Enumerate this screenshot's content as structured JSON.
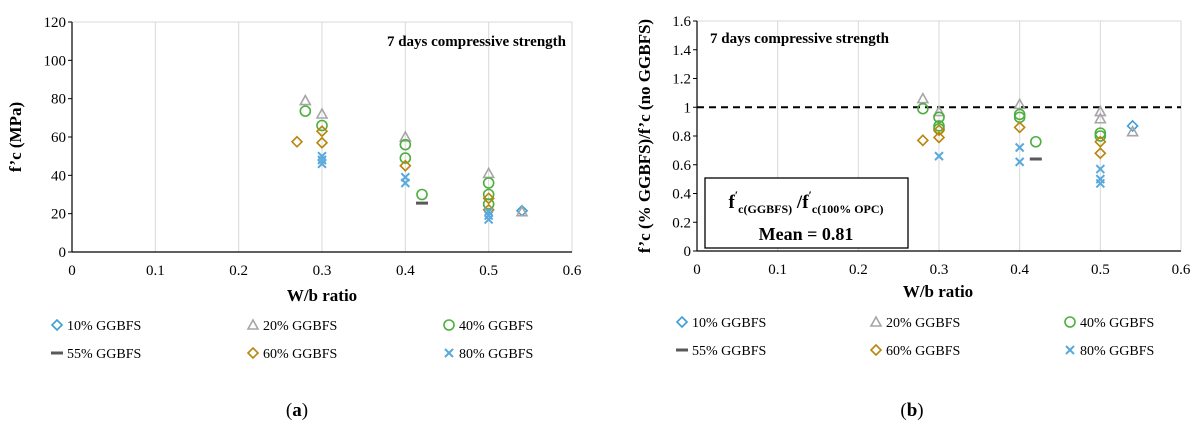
{
  "colors": {
    "10% GGBFS": "#3b9fd8",
    "20% GGBFS": "#a6a6a6",
    "40% GGBFS": "#4caf3d",
    "55% GGBFS": "#595959",
    "60% GGBFS": "#b8860b",
    "80% GGBFS": "#5aa9dc",
    "grid": "#d9d9d9",
    "mean_line": "#000000"
  },
  "markers": {
    "10% GGBFS": "diamond",
    "20% GGBFS": "triangle",
    "40% GGBFS": "circle",
    "55% GGBFS": "dash",
    "60% GGBFS": "diamond",
    "80% GGBFS": "cross"
  },
  "captions": {
    "a_prefix": "(",
    "a_letter": "a",
    "a_suffix": ")",
    "b_prefix": "(",
    "b_letter": "b",
    "b_suffix": ")"
  },
  "chart_data": [
    {
      "type": "scatter",
      "title": "7 days compressive strength",
      "xlabel": "W/b ratio",
      "ylabel": "f’c (MPa)",
      "xlim": [
        0,
        0.6
      ],
      "ylim": [
        0,
        120
      ],
      "xticks": [
        "0",
        "0.1",
        "0.2",
        "0.3",
        "0.4",
        "0.5",
        "0.6"
      ],
      "yticks": [
        "0",
        "20",
        "40",
        "60",
        "80",
        "100",
        "120"
      ],
      "grid": "vertical",
      "series": [
        {
          "name": "10% GGBFS",
          "x": [
            0.54
          ],
          "y": [
            21.5
          ]
        },
        {
          "name": "20% GGBFS",
          "x": [
            0.28,
            0.3,
            0.4,
            0.5,
            0.54
          ],
          "y": [
            79,
            72,
            60,
            41,
            21
          ]
        },
        {
          "name": "40% GGBFS",
          "x": [
            0.28,
            0.3,
            0.4,
            0.4,
            0.42,
            0.5,
            0.5,
            0.5
          ],
          "y": [
            73.5,
            66,
            56,
            49,
            30,
            36,
            30,
            25
          ]
        },
        {
          "name": "55% GGBFS",
          "x": [
            0.42
          ],
          "y": [
            25.5
          ]
        },
        {
          "name": "60% GGBFS",
          "x": [
            0.27,
            0.3,
            0.3,
            0.4,
            0.5,
            0.5
          ],
          "y": [
            57.5,
            63,
            57,
            45,
            28,
            22
          ]
        },
        {
          "name": "80% GGBFS",
          "x": [
            0.3,
            0.3,
            0.3,
            0.4,
            0.4,
            0.5,
            0.5,
            0.5
          ],
          "y": [
            50,
            48,
            46,
            39,
            36,
            21,
            19,
            17
          ]
        }
      ],
      "legend": {
        "position": "bottom",
        "entries": [
          "10% GGBFS",
          "20% GGBFS",
          "40% GGBFS",
          "55% GGBFS",
          "60% GGBFS",
          "80% GGBFS"
        ]
      }
    },
    {
      "type": "scatter",
      "title": "7 days compressive strength",
      "xlabel": "W/b ratio",
      "ylabel": "f’c (% GGBFS)/f’c (no GGBFS)",
      "xlim": [
        0,
        0.6
      ],
      "ylim": [
        0,
        1.6
      ],
      "xticks": [
        "0",
        "0.1",
        "0.2",
        "0.3",
        "0.4",
        "0.5",
        "0.6"
      ],
      "yticks": [
        "0",
        "0.2",
        "0.4",
        "0.6",
        "0.8",
        "1",
        "1.2",
        "1.4",
        "1.6"
      ],
      "grid": "vertical",
      "reference_line": {
        "y": 1.0,
        "style": "dashed"
      },
      "annotation": {
        "formula_left": "f",
        "formula_left_sub": "c(GGBFS)",
        "formula_sep": " /",
        "formula_right": "f",
        "formula_right_sub": "c(100% OPC)",
        "prime": "′",
        "mean_label": "Mean = 0.81"
      },
      "series": [
        {
          "name": "10% GGBFS",
          "x": [
            0.54
          ],
          "y": [
            0.87
          ]
        },
        {
          "name": "20% GGBFS",
          "x": [
            0.28,
            0.3,
            0.4,
            0.5,
            0.5,
            0.54
          ],
          "y": [
            1.06,
            0.97,
            1.02,
            0.97,
            0.92,
            0.83
          ]
        },
        {
          "name": "40% GGBFS",
          "x": [
            0.28,
            0.3,
            0.3,
            0.3,
            0.4,
            0.4,
            0.42,
            0.5,
            0.5
          ],
          "y": [
            0.99,
            0.93,
            0.87,
            0.85,
            0.95,
            0.93,
            0.76,
            0.82,
            0.8
          ]
        },
        {
          "name": "55% GGBFS",
          "x": [
            0.42
          ],
          "y": [
            0.64
          ]
        },
        {
          "name": "60% GGBFS",
          "x": [
            0.28,
            0.3,
            0.3,
            0.4,
            0.5,
            0.5
          ],
          "y": [
            0.77,
            0.84,
            0.79,
            0.86,
            0.76,
            0.68
          ]
        },
        {
          "name": "80% GGBFS",
          "x": [
            0.3,
            0.4,
            0.4,
            0.5,
            0.5,
            0.5
          ],
          "y": [
            0.66,
            0.72,
            0.62,
            0.57,
            0.5,
            0.47
          ]
        }
      ],
      "legend": {
        "position": "bottom",
        "entries": [
          "10% GGBFS",
          "20% GGBFS",
          "40% GGBFS",
          "55% GGBFS",
          "60% GGBFS",
          "80% GGBFS"
        ]
      }
    }
  ]
}
